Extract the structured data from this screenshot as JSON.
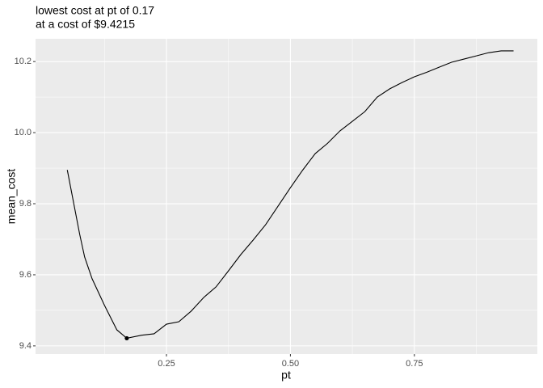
{
  "chart_data": {
    "type": "line",
    "title": [
      "lowest cost at pt of 0.17",
      "at a cost of $9.4215"
    ],
    "x_label": "pt",
    "y_label": "mean_cost",
    "x": [
      0.05,
      0.075,
      0.085,
      0.1,
      0.125,
      0.15,
      0.17,
      0.2,
      0.225,
      0.25,
      0.275,
      0.3,
      0.325,
      0.35,
      0.375,
      0.4,
      0.425,
      0.45,
      0.475,
      0.5,
      0.525,
      0.55,
      0.575,
      0.6,
      0.625,
      0.65,
      0.675,
      0.7,
      0.725,
      0.75,
      0.775,
      0.8,
      0.825,
      0.85,
      0.875,
      0.9,
      0.925,
      0.95
    ],
    "series": [
      {
        "name": "mean_cost",
        "color": "#000000",
        "values": [
          9.895,
          9.714,
          9.65,
          9.589,
          9.514,
          9.445,
          9.4215,
          9.43,
          9.434,
          9.461,
          9.468,
          9.498,
          9.536,
          9.566,
          9.611,
          9.657,
          9.698,
          9.741,
          9.793,
          9.845,
          9.895,
          9.941,
          9.97,
          10.005,
          10.032,
          10.059,
          10.1,
          10.123,
          10.141,
          10.157,
          10.17,
          10.184,
          10.198,
          10.207,
          10.216,
          10.225,
          10.23,
          10.23
        ]
      }
    ],
    "highlight": {
      "x": 0.17,
      "y": 9.4215,
      "color": "#000000"
    },
    "xlim": [
      -0.014,
      0.998
    ],
    "ylim": [
      9.377,
      10.264
    ],
    "xticks": [
      {
        "value": 0.25,
        "label": "0.25"
      },
      {
        "value": 0.5,
        "label": "0.50"
      },
      {
        "value": 0.75,
        "label": "0.75"
      }
    ],
    "yticks": [
      {
        "value": 9.4,
        "label": "9.4"
      },
      {
        "value": 9.6,
        "label": "9.6"
      },
      {
        "value": 9.8,
        "label": "9.8"
      },
      {
        "value": 10.0,
        "label": "10.0"
      },
      {
        "value": 10.2,
        "label": "10.2"
      }
    ],
    "xminor": [
      0.125,
      0.375,
      0.625,
      0.875
    ],
    "yminor": [
      9.5,
      9.7,
      9.9,
      10.1
    ],
    "grid": true,
    "panel_color": "#ebebeb"
  }
}
